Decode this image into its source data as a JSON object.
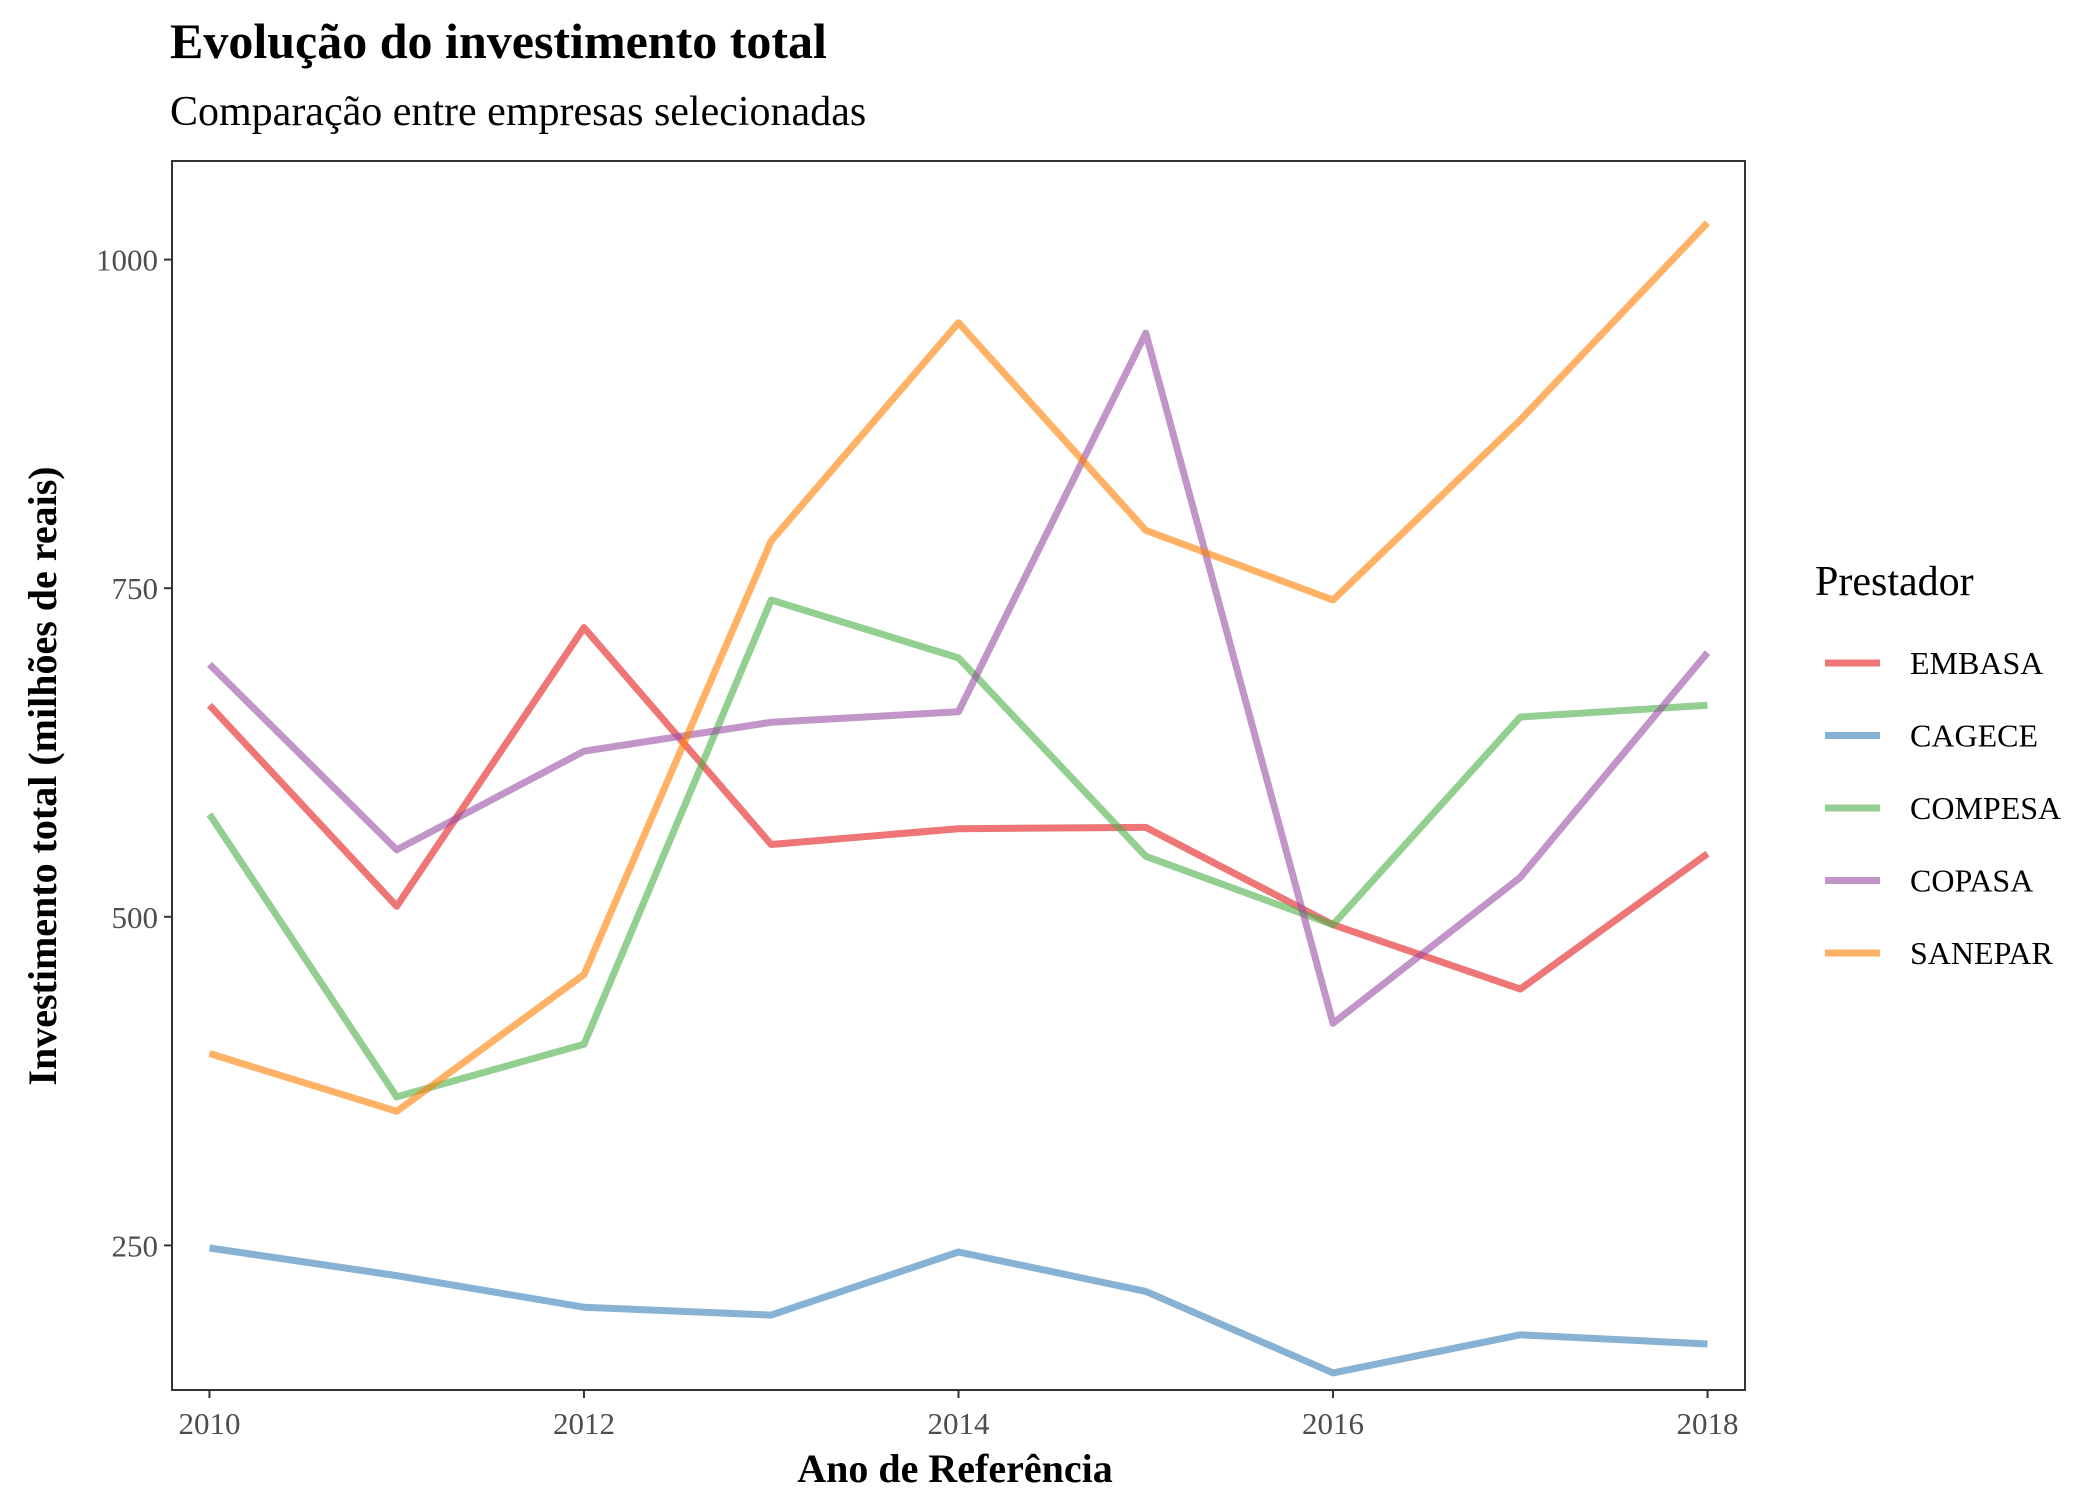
{
  "chart_data": {
    "type": "line",
    "title": "Evolução do investimento total",
    "subtitle": "Comparação entre empresas selecionadas",
    "xlabel": "Ano de Referência",
    "ylabel": "Investimento total (milhões de reais)",
    "x": [
      2010,
      2011,
      2012,
      2013,
      2014,
      2015,
      2016,
      2017,
      2018
    ],
    "xlim": [
      2009.8,
      2018.2
    ],
    "ylim": [
      140,
      1075
    ],
    "x_ticks": [
      2010,
      2012,
      2014,
      2016,
      2018
    ],
    "y_ticks": [
      250,
      500,
      750,
      1000
    ],
    "grid": false,
    "legend": {
      "title": "Prestador",
      "position": "right"
    },
    "series": [
      {
        "name": "EMBASA",
        "color": "#E41A1C",
        "values": [
          661,
          508,
          720,
          555,
          567,
          568,
          494,
          445,
          548
        ]
      },
      {
        "name": "CAGECE",
        "color": "#377EB8",
        "values": [
          248,
          227,
          203,
          197,
          245,
          215,
          153,
          182,
          175
        ]
      },
      {
        "name": "COMPESA",
        "color": "#4DAF4A",
        "values": [
          578,
          363,
          403,
          741,
          697,
          546,
          494,
          652,
          661
        ]
      },
      {
        "name": "COPASA",
        "color": "#984EA3",
        "values": [
          692,
          551,
          626,
          648,
          656,
          944,
          419,
          530,
          701
        ]
      },
      {
        "name": "SANEPAR",
        "color": "#FF7F00",
        "values": [
          396,
          352,
          456,
          786,
          952,
          794,
          741,
          878,
          1028
        ]
      }
    ]
  }
}
